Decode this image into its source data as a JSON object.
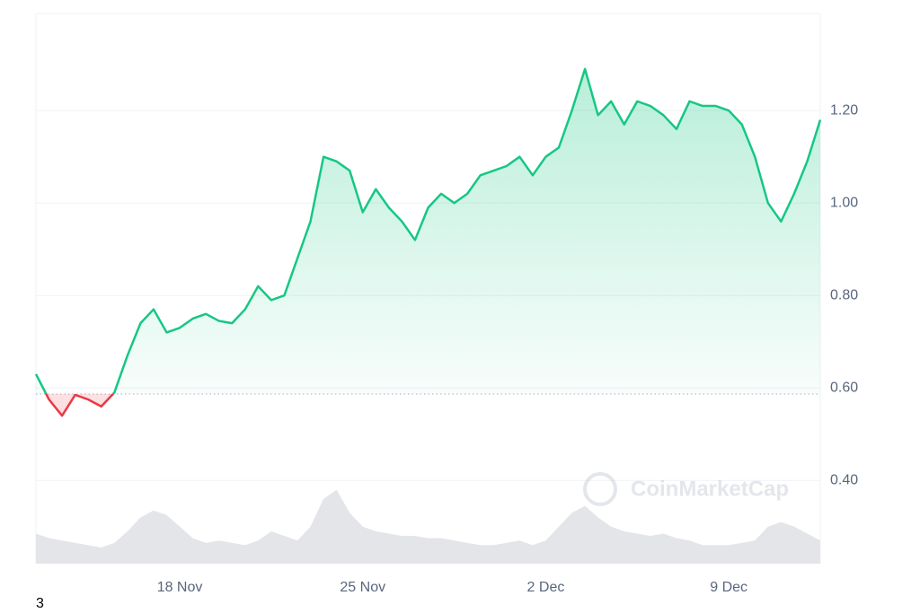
{
  "chart_data": {
    "type": "line",
    "categories": [
      null,
      null,
      null,
      null,
      null,
      null,
      null,
      null,
      null,
      null,
      null,
      "18 Nov",
      null,
      null,
      null,
      null,
      null,
      null,
      null,
      null,
      null,
      null,
      null,
      null,
      null,
      "25 Nov",
      null,
      null,
      null,
      null,
      null,
      null,
      null,
      null,
      null,
      null,
      null,
      null,
      null,
      "2 Dec",
      null,
      null,
      null,
      null,
      null,
      null,
      null,
      null,
      null,
      null,
      null,
      null,
      null,
      "9 Dec",
      null,
      null,
      null,
      null,
      null,
      null,
      null
    ],
    "series": [
      {
        "values": [
          0.63,
          0.575,
          0.54,
          0.585,
          0.575,
          0.56,
          0.59,
          0.67,
          0.74,
          0.77,
          0.72,
          0.73,
          0.75,
          0.76,
          0.745,
          0.74,
          0.77,
          0.82,
          0.79,
          0.8,
          0.88,
          0.96,
          1.1,
          1.09,
          1.07,
          0.98,
          1.03,
          0.99,
          0.96,
          0.92,
          0.99,
          1.02,
          1.0,
          1.02,
          1.06,
          1.07,
          1.08,
          1.1,
          1.06,
          1.1,
          1.12,
          1.2,
          1.29,
          1.19,
          1.22,
          1.17,
          1.22,
          1.21,
          1.19,
          1.16,
          1.22,
          1.21,
          1.21,
          1.2,
          1.17,
          1.1,
          1.0,
          0.96,
          1.02,
          1.09,
          1.18
        ],
        "color": "#16c784"
      }
    ],
    "down_color": "#ea3943",
    "baseline": 0.587,
    "volume": {
      "color": "#e3e5e8",
      "values": [
        0.285,
        0.275,
        0.27,
        0.265,
        0.26,
        0.255,
        0.265,
        0.29,
        0.32,
        0.335,
        0.325,
        0.3,
        0.275,
        0.265,
        0.27,
        0.265,
        0.26,
        0.27,
        0.29,
        0.28,
        0.27,
        0.3,
        0.36,
        0.38,
        0.33,
        0.3,
        0.29,
        0.285,
        0.28,
        0.28,
        0.275,
        0.275,
        0.27,
        0.265,
        0.26,
        0.26,
        0.265,
        0.27,
        0.26,
        0.27,
        0.3,
        0.33,
        0.345,
        0.32,
        0.3,
        0.29,
        0.285,
        0.28,
        0.285,
        0.275,
        0.27,
        0.26,
        0.26,
        0.26,
        0.265,
        0.27,
        0.3,
        0.31,
        0.3,
        0.285,
        0.27
      ]
    },
    "ylim": [
      0.22,
      1.41
    ],
    "yticks": [
      {
        "value": 0.4,
        "label": "0.40"
      },
      {
        "value": 0.6,
        "label": "0.60"
      },
      {
        "value": 0.8,
        "label": "0.80"
      },
      {
        "value": 1.0,
        "label": "1.00"
      },
      {
        "value": 1.2,
        "label": "1.20"
      }
    ],
    "grid": true,
    "watermark": "CoinMarketCap",
    "footnote": "3"
  }
}
